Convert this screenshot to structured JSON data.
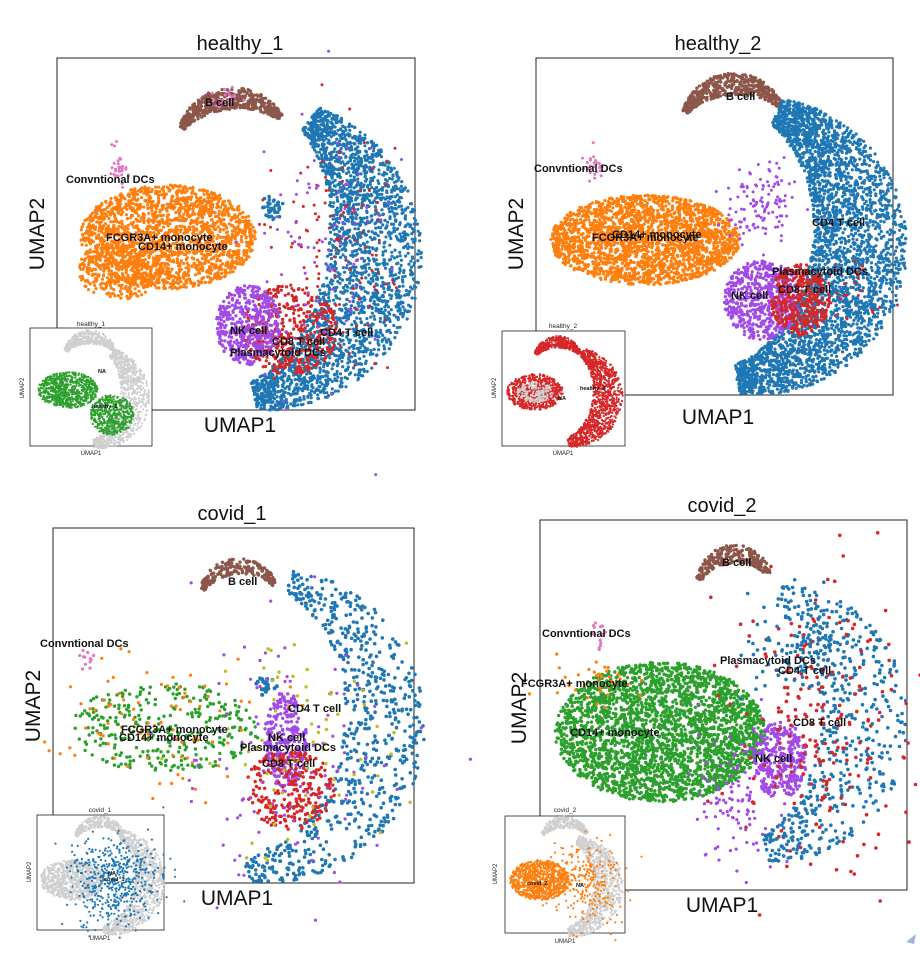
{
  "colors": {
    "B cell": "#8c564b",
    "Convntional DCs": "#e377c2",
    "FCGR3A+ monocyte": "#ff7f0e",
    "CD14+ monocyte": "#ff7f0e",
    "NK cell": "#a14ae8",
    "CD8 T cell": "#d62728",
    "CD4 T cell": "#1f77b4",
    "Plasmacytoid DCs": "#bcbd22",
    "covid_green": "#2ca02c",
    "inset_gray": "#cfcfcf"
  },
  "chart_data": [
    {
      "type": "scatter",
      "title": "healthy_1",
      "xlabel": "UMAP1",
      "ylabel": "UMAP2",
      "cluster_labels": [
        "B cell",
        "Convntional DCs",
        "FCGR3A+ monocyte",
        "CD14+ monocyte",
        "NK cell",
        "CD8 T cell",
        "CD4 T cell",
        "Plasmacytoid DCs"
      ],
      "inset": {
        "title": "healthy_1",
        "xlabel": "UMAP1",
        "ylabel": "UMAP2",
        "labels": [
          "NA",
          "healthy_1"
        ],
        "highlight_color": "#2ca02c"
      }
    },
    {
      "type": "scatter",
      "title": "healthy_2",
      "xlabel": "UMAP1",
      "ylabel": "UMAP2",
      "cluster_labels": [
        "B cell",
        "Convntional DCs",
        "FCGR3A+ monocyte",
        "CD14+ monocyte",
        "CD4 T cell",
        "Plasmacytoid DCs",
        "NK cell",
        "CD8 T cell"
      ],
      "inset": {
        "title": "healthy_2",
        "xlabel": "UMAP1",
        "ylabel": "UMAP2",
        "labels": [
          "NA",
          "healthy_2"
        ],
        "highlight_color": "#d62728"
      }
    },
    {
      "type": "scatter",
      "title": "covid_1",
      "xlabel": "UMAP1",
      "ylabel": "UMAP2",
      "cluster_labels": [
        "B cell",
        "Convntional DCs",
        "FCGR3A+ monocyte",
        "CD14+ monocyte",
        "CD4 T cell",
        "NK cell",
        "Plasmacytoid DCs",
        "CD8 T cell"
      ],
      "inset": {
        "title": "covid_1",
        "xlabel": "UMAP1",
        "ylabel": "UMAP2",
        "labels": [
          "NA",
          "covid_1"
        ],
        "highlight_color": "#1f77b4"
      }
    },
    {
      "type": "scatter",
      "title": "covid_2",
      "xlabel": "UMAP1",
      "ylabel": "UMAP2",
      "cluster_labels": [
        "B cell",
        "Convntional DCs",
        "FCGR3A+ monocyte",
        "Plasmacytoid DCs",
        "CD4 T cell",
        "CD14+ monocyte",
        "CD8 T cell",
        "NK cell"
      ],
      "inset": {
        "title": "covid_2",
        "xlabel": "UMAP1",
        "ylabel": "UMAP2",
        "labels": [
          "covid_2",
          "NA"
        ],
        "highlight_color": "#ff7f0e"
      }
    }
  ]
}
